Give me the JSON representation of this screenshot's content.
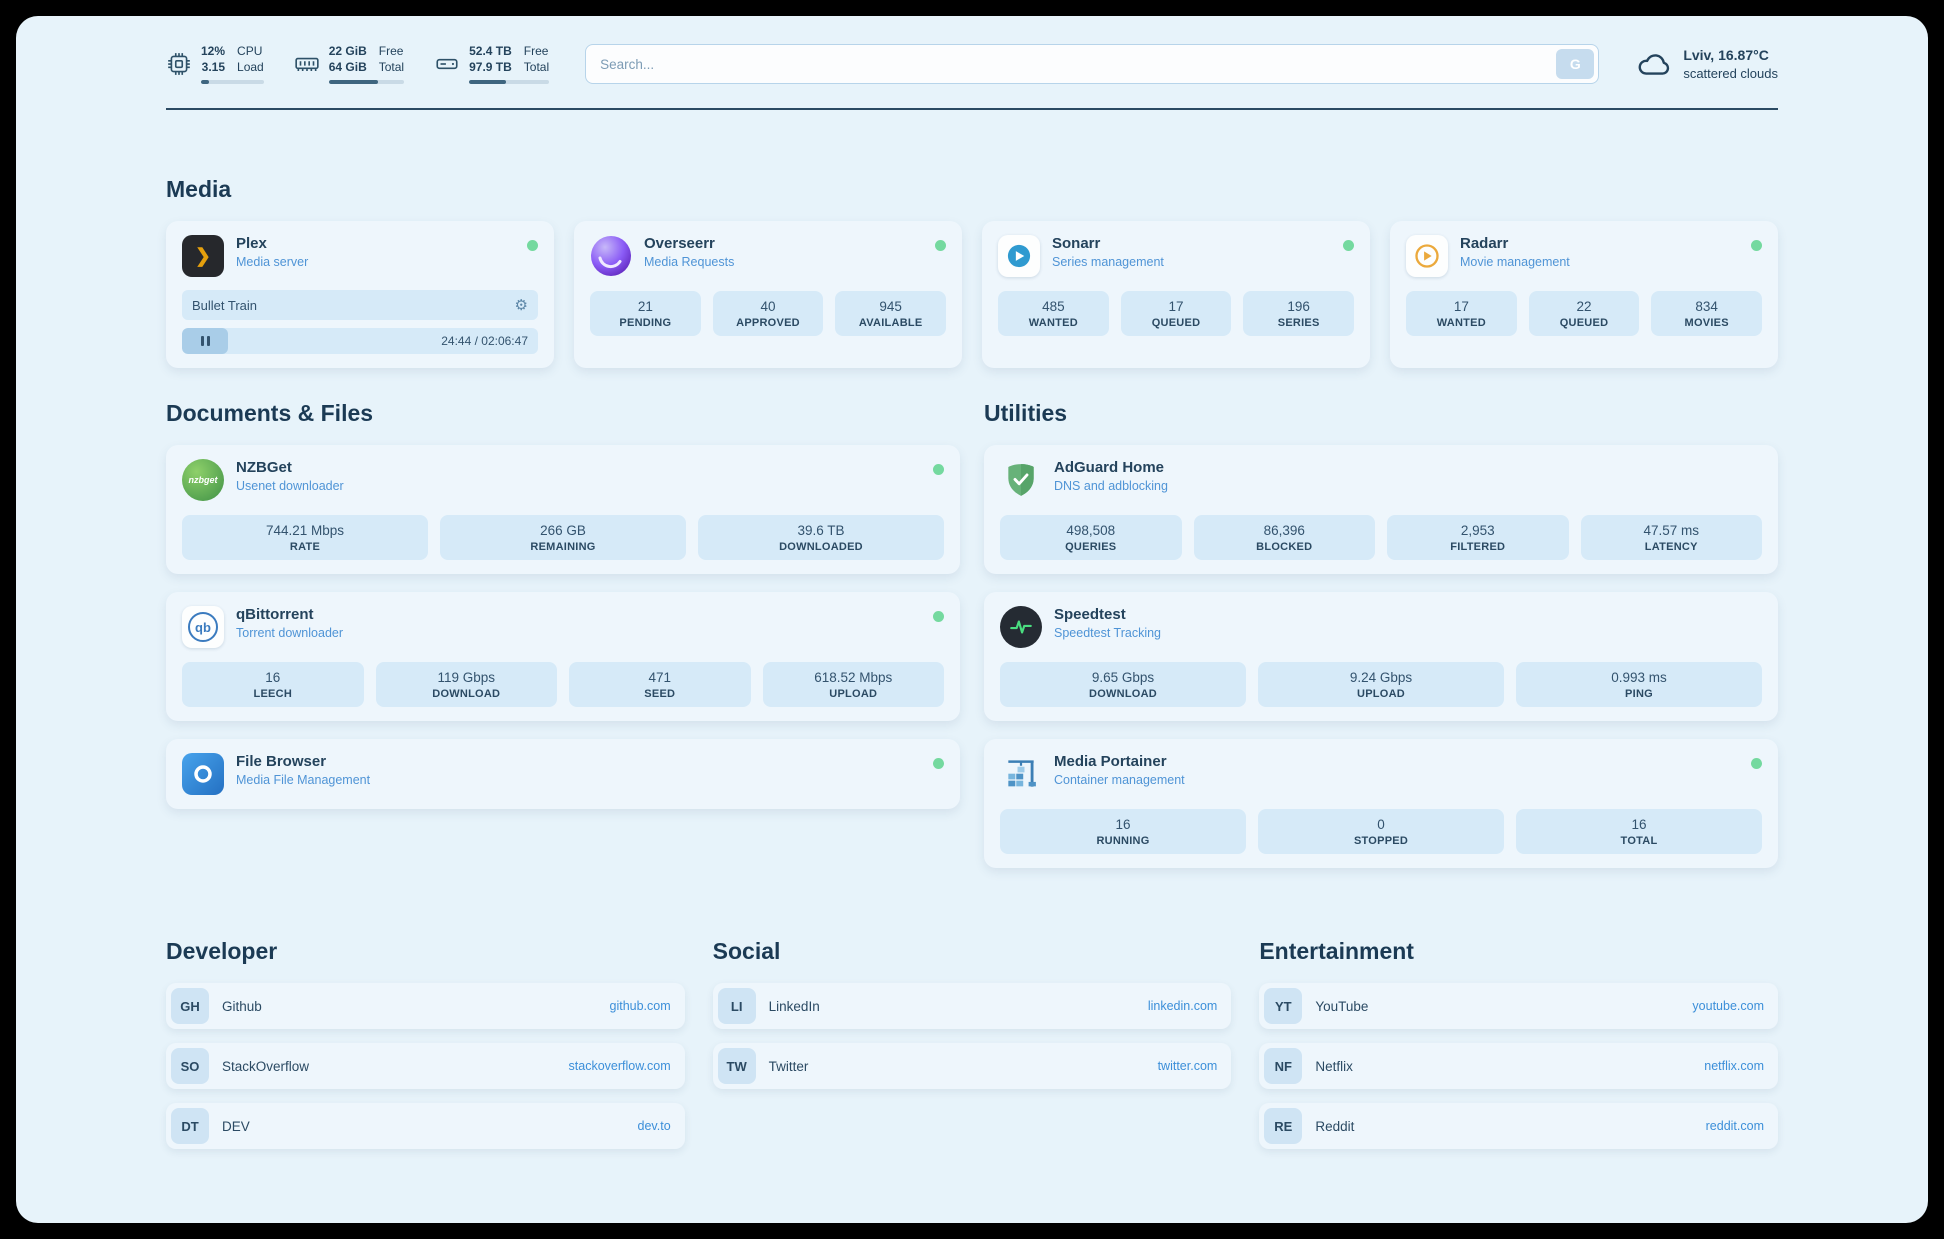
{
  "topbar": {
    "cpu": {
      "value_top": "12%",
      "value_bottom": "3.15",
      "label_top": "CPU",
      "label_bottom": "Load",
      "progress": 12
    },
    "memory": {
      "value_top": "22 GiB",
      "value_bottom": "64 GiB",
      "label_top": "Free",
      "label_bottom": "Total",
      "progress": 66
    },
    "storage": {
      "value_top": "52.4 TB",
      "value_bottom": "97.9 TB",
      "label_top": "Free",
      "label_bottom": "Total",
      "progress": 46
    },
    "search": {
      "placeholder": "Search...",
      "button_label": "G"
    },
    "weather": {
      "location": "Lviv, 16.87°C",
      "description": "scattered clouds"
    }
  },
  "sections": {
    "media": {
      "heading": "Media",
      "cards": [
        {
          "title": "Plex",
          "subtitle": "Media server",
          "online": true,
          "player": {
            "track": "Bullet Train",
            "time": "24:44 / 02:06:47"
          }
        },
        {
          "title": "Overseerr",
          "subtitle": "Media Requests",
          "online": true,
          "stats": [
            {
              "value": "21",
              "label": "PENDING"
            },
            {
              "value": "40",
              "label": "APPROVED"
            },
            {
              "value": "945",
              "label": "AVAILABLE"
            }
          ]
        },
        {
          "title": "Sonarr",
          "subtitle": "Series management",
          "online": true,
          "stats": [
            {
              "value": "485",
              "label": "WANTED"
            },
            {
              "value": "17",
              "label": "QUEUED"
            },
            {
              "value": "196",
              "label": "SERIES"
            }
          ]
        },
        {
          "title": "Radarr",
          "subtitle": "Movie management",
          "online": true,
          "stats": [
            {
              "value": "17",
              "label": "WANTED"
            },
            {
              "value": "22",
              "label": "QUEUED"
            },
            {
              "value": "834",
              "label": "MOVIES"
            }
          ]
        }
      ]
    },
    "documents": {
      "heading": "Documents & Files",
      "cards": [
        {
          "title": "NZBGet",
          "subtitle": "Usenet downloader",
          "online": true,
          "stats": [
            {
              "value": "744.21 Mbps",
              "label": "RATE"
            },
            {
              "value": "266 GB",
              "label": "REMAINING"
            },
            {
              "value": "39.6 TB",
              "label": "DOWNLOADED"
            }
          ]
        },
        {
          "title": "qBittorrent",
          "subtitle": "Torrent downloader",
          "online": true,
          "stats": [
            {
              "value": "16",
              "label": "LEECH"
            },
            {
              "value": "119 Gbps",
              "label": "DOWNLOAD"
            },
            {
              "value": "471",
              "label": "SEED"
            },
            {
              "value": "618.52 Mbps",
              "label": "UPLOAD"
            }
          ]
        },
        {
          "title": "File Browser",
          "subtitle": "Media File Management",
          "online": true,
          "stats": []
        }
      ]
    },
    "utilities": {
      "heading": "Utilities",
      "cards": [
        {
          "title": "AdGuard Home",
          "subtitle": "DNS and adblocking",
          "online": false,
          "stats": [
            {
              "value": "498,508",
              "label": "QUERIES"
            },
            {
              "value": "86,396",
              "label": "BLOCKED"
            },
            {
              "value": "2,953",
              "label": "FILTERED"
            },
            {
              "value": "47.57 ms",
              "label": "LATENCY"
            }
          ]
        },
        {
          "title": "Speedtest",
          "subtitle": "Speedtest Tracking",
          "online": false,
          "stats": [
            {
              "value": "9.65 Gbps",
              "label": "DOWNLOAD"
            },
            {
              "value": "9.24 Gbps",
              "label": "UPLOAD"
            },
            {
              "value": "0.993 ms",
              "label": "PING"
            }
          ]
        },
        {
          "title": "Media Portainer",
          "subtitle": "Container management",
          "online": true,
          "stats": [
            {
              "value": "16",
              "label": "RUNNING"
            },
            {
              "value": "0",
              "label": "STOPPED"
            },
            {
              "value": "16",
              "label": "TOTAL"
            }
          ]
        }
      ]
    }
  },
  "bookmarks": [
    {
      "heading": "Developer",
      "items": [
        {
          "abbr": "GH",
          "name": "Github",
          "url": "github.com"
        },
        {
          "abbr": "SO",
          "name": "StackOverflow",
          "url": "stackoverflow.com"
        },
        {
          "abbr": "DT",
          "name": "DEV",
          "url": "dev.to"
        }
      ]
    },
    {
      "heading": "Social",
      "items": [
        {
          "abbr": "LI",
          "name": "LinkedIn",
          "url": "linkedin.com"
        },
        {
          "abbr": "TW",
          "name": "Twitter",
          "url": "twitter.com"
        }
      ]
    },
    {
      "heading": "Entertainment",
      "items": [
        {
          "abbr": "YT",
          "name": "YouTube",
          "url": "youtube.com"
        },
        {
          "abbr": "NF",
          "name": "Netflix",
          "url": "netflix.com"
        },
        {
          "abbr": "RE",
          "name": "Reddit",
          "url": "reddit.com"
        }
      ]
    }
  ],
  "icons": {
    "gear": "⚙",
    "plex_chevron": "❯",
    "nzbget_label": "nzbget",
    "qb_label": "qb"
  },
  "colors": {
    "page_bg": "#e7f3fa",
    "accent": "#3c8fd9",
    "status_online": "#74d99f",
    "stat_box_bg": "#d6eaf8",
    "text_primary": "#24435c",
    "subtitle_blue": "#4f94d6"
  }
}
